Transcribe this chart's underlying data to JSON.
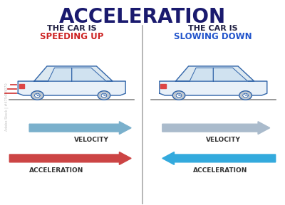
{
  "title": "ACCELERATION",
  "title_fontsize": 20,
  "title_color": "#1a1a6e",
  "title_fontweight": "bold",
  "bg_color": "#ffffff",
  "divider_color": "#aaaaaa",
  "left_panel": {
    "label_line1": "THE CAR IS",
    "label_line2": "SPEEDING UP",
    "label_line1_color": "#222244",
    "label_line2_color": "#cc2222"
  },
  "right_panel": {
    "label_line1": "THE CAR IS",
    "label_line2": "SLOWING DOWN",
    "label_line1_color": "#222244",
    "label_line2_color": "#2255cc"
  },
  "ground_color": "#888888",
  "car_outline_color": "#3366aa",
  "car_body_color": "#e8f0f8",
  "car_cabin_color": "#dce8f0",
  "wheel_color": "#c0c8d0",
  "tail_light_color": "#dd4444",
  "vel_arrow_left_color": "#7ab0cc",
  "accel_arrow_left_color": "#cc4444",
  "vel_arrow_right_color": "#aabbcc",
  "accel_arrow_right_color": "#33aadd",
  "label_fontsize": 8,
  "arrow_label_fontsize": 6.5,
  "arrow_label_color": "#333333",
  "watermark_text": "Adobe Stock | #475454070"
}
